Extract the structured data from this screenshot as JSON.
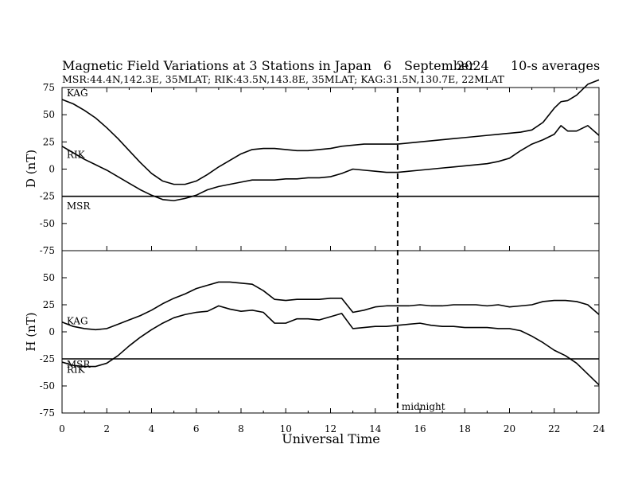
{
  "chart_data": {
    "type": "line",
    "title": "Magnetic Field Variations at 3 Stations in Japan",
    "date_day": "6",
    "date_month": "September",
    "date_year": "2024",
    "averaging": "10-s averages",
    "stations_line": "MSR:44.4N,142.3E, 35MLAT;  RIK:43.5N,143.8E, 35MLAT;  KAG:31.5N,130.7E, 22MLAT",
    "xlabel": "Universal Time",
    "xlim": [
      0,
      24
    ],
    "xticks": [
      0,
      2,
      4,
      6,
      8,
      10,
      12,
      14,
      16,
      18,
      20,
      22,
      24
    ],
    "midnight_ut": 15,
    "midnight_label": "midnight",
    "panels": [
      {
        "ylabel": "D (nT)",
        "ylim": [
          -75,
          75
        ],
        "yticks": [
          75,
          50,
          25,
          0,
          -25,
          -50,
          -75
        ],
        "series": [
          {
            "name": "KAG",
            "label_at": [
              0.1,
              70
            ],
            "x": [
              0,
              0.5,
              1,
              1.5,
              2,
              2.5,
              3,
              3.5,
              4,
              4.5,
              5,
              5.5,
              6,
              6.5,
              7,
              7.5,
              8,
              8.5,
              9,
              9.5,
              10,
              10.5,
              11,
              11.5,
              12,
              12.5,
              13,
              13.5,
              14,
              14.5,
              15,
              15.5,
              16,
              16.5,
              17,
              17.5,
              18,
              18.5,
              19,
              19.5,
              20,
              20.5,
              21,
              21.5,
              22,
              22.3,
              22.6,
              23,
              23.5,
              24
            ],
            "y": [
              64,
              60,
              54,
              47,
              38,
              28,
              17,
              6,
              -4,
              -11,
              -14,
              -14,
              -11,
              -5,
              2,
              8,
              14,
              18,
              19,
              19,
              18,
              17,
              17,
              18,
              19,
              21,
              22,
              23,
              23,
              23,
              23,
              24,
              25,
              26,
              27,
              28,
              29,
              30,
              31,
              32,
              33,
              34,
              36,
              43,
              56,
              62,
              63,
              68,
              78,
              82
            ]
          },
          {
            "name": "RIK",
            "label_at": [
              0.1,
              13
            ],
            "x": [
              0,
              0.5,
              1,
              1.5,
              2,
              2.5,
              3,
              3.5,
              4,
              4.5,
              5,
              5.5,
              6,
              6.5,
              7,
              7.5,
              8,
              8.5,
              9,
              9.5,
              10,
              10.5,
              11,
              11.5,
              12,
              12.5,
              13,
              13.5,
              14,
              14.5,
              15,
              15.5,
              16,
              16.5,
              17,
              17.5,
              18,
              18.5,
              19,
              19.5,
              20,
              20.5,
              21,
              21.5,
              22,
              22.3,
              22.6,
              23,
              23.5,
              24
            ],
            "y": [
              21,
              15,
              9,
              4,
              -1,
              -7,
              -13,
              -19,
              -24,
              -28,
              -29,
              -27,
              -24,
              -19,
              -16,
              -14,
              -12,
              -10,
              -10,
              -10,
              -9,
              -9,
              -8,
              -8,
              -7,
              -4,
              0,
              -1,
              -2,
              -3,
              -3,
              -2,
              -1,
              0,
              1,
              2,
              3,
              4,
              5,
              7,
              10,
              17,
              23,
              27,
              32,
              40,
              35,
              35,
              40,
              31
            ]
          },
          {
            "name": "MSR",
            "label_at": [
              0.1,
              -34
            ],
            "x": [
              0,
              24
            ],
            "y": [
              -25,
              -25
            ]
          }
        ]
      },
      {
        "ylabel": "H (nT)",
        "ylim": [
          -75,
          75
        ],
        "yticks": [
          50,
          25,
          0,
          -25,
          -50,
          -75
        ],
        "series": [
          {
            "name": "KAG",
            "label_at": [
              0.1,
              10
            ],
            "x": [
              0,
              0.5,
              1,
              1.5,
              2,
              2.5,
              3,
              3.5,
              4,
              4.5,
              5,
              5.5,
              6,
              6.5,
              7,
              7.5,
              8,
              8.5,
              9,
              9.5,
              10,
              10.5,
              11,
              11.5,
              12,
              12.5,
              13,
              13.5,
              14,
              14.5,
              15,
              15.5,
              16,
              16.5,
              17,
              17.5,
              18,
              18.5,
              19,
              19.5,
              20,
              20.5,
              21,
              21.5,
              22,
              22.5,
              23,
              23.5,
              24
            ],
            "y": [
              9,
              5,
              3,
              2,
              3,
              7,
              11,
              15,
              20,
              26,
              31,
              35,
              40,
              43,
              46,
              46,
              45,
              44,
              38,
              30,
              29,
              30,
              30,
              30,
              31,
              31,
              18,
              20,
              23,
              24,
              24,
              24,
              25,
              24,
              24,
              25,
              25,
              25,
              24,
              25,
              23,
              24,
              25,
              28,
              29,
              29,
              28,
              25,
              16
            ]
          },
          {
            "name": "RIK",
            "label_at": [
              0.1,
              -35
            ],
            "x": [
              0,
              0.5,
              1,
              1.5,
              2,
              2.5,
              3,
              3.5,
              4,
              4.5,
              5,
              5.5,
              6,
              6.5,
              7,
              7.5,
              8,
              8.5,
              9,
              9.5,
              10,
              10.5,
              11,
              11.5,
              12,
              12.5,
              13,
              13.5,
              14,
              14.5,
              15,
              15.5,
              16,
              16.5,
              17,
              17.5,
              18,
              18.5,
              19,
              19.5,
              20,
              20.5,
              21,
              21.5,
              22,
              22.5,
              23,
              23.5,
              24
            ],
            "y": [
              -28,
              -31,
              -32,
              -32,
              -29,
              -22,
              -13,
              -5,
              2,
              8,
              13,
              16,
              18,
              19,
              24,
              21,
              19,
              20,
              18,
              8,
              8,
              12,
              12,
              11,
              14,
              17,
              3,
              4,
              5,
              5,
              6,
              7,
              8,
              6,
              5,
              5,
              4,
              4,
              4,
              3,
              3,
              1,
              -4,
              -10,
              -17,
              -22,
              -29,
              -39,
              -49
            ]
          },
          {
            "name": "MSR",
            "label_at": [
              0.1,
              -30
            ],
            "x": [
              0,
              24
            ],
            "y": [
              -25,
              -25
            ]
          }
        ]
      }
    ]
  }
}
